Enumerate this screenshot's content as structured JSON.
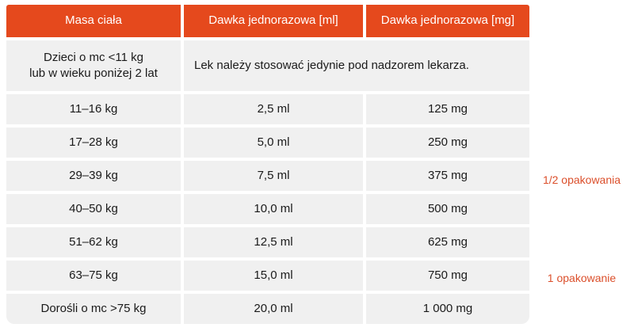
{
  "chart_data": {
    "type": "table",
    "columns": [
      "Masa ciała",
      "Dawka jednorazowa [ml]",
      "Dawka jednorazowa [mg]"
    ],
    "special_row": {
      "mass": "Dzieci o mc <11 kg lub w wieku poniżej 2 lat",
      "note": "Lek należy stosować jedynie pod nadzorem lekarza."
    },
    "rows": [
      [
        "11–16 kg",
        "2,5 ml",
        "125 mg"
      ],
      [
        "17–28 kg",
        "5,0 ml",
        "250 mg"
      ],
      [
        "29–39 kg",
        "7,5 ml",
        "375 mg"
      ],
      [
        "40–50 kg",
        "10,0 ml",
        "500 mg"
      ],
      [
        "51–62 kg",
        "12,5 ml",
        "625 mg"
      ],
      [
        "63–75 kg",
        "15,0 ml",
        "750 mg"
      ],
      [
        "Dorośli o mc >75 kg",
        "20,0 ml",
        "1 000 mg"
      ]
    ],
    "annotations": [
      {
        "label": "1/2 opakowania",
        "aligned_row": "29–39 kg"
      },
      {
        "label": "1 opakowanie",
        "aligned_row": "63–75 kg"
      }
    ]
  },
  "table": {
    "headers": [
      "Masa ciała",
      "Dawka jednorazowa [ml]",
      "Dawka jednorazowa [mg]"
    ],
    "special_row": {
      "label_line1": "Dzieci o mc <11 kg",
      "label_line2": "lub w wieku poniżej 2 lat",
      "note": "Lek należy stosować jedynie pod nadzorem lekarza."
    },
    "rows": [
      {
        "mass": "11–16 kg",
        "ml": "2,5 ml",
        "mg": "125 mg"
      },
      {
        "mass": "17–28 kg",
        "ml": "5,0 ml",
        "mg": "250 mg"
      },
      {
        "mass": "29–39 kg",
        "ml": "7,5 ml",
        "mg": "375 mg"
      },
      {
        "mass": "40–50 kg",
        "ml": "10,0 ml",
        "mg": "500 mg"
      },
      {
        "mass": "51–62 kg",
        "ml": "12,5 ml",
        "mg": "625 mg"
      },
      {
        "mass": "63–75 kg",
        "ml": "15,0 ml",
        "mg": "750 mg"
      },
      {
        "mass": "Dorośli o mc >75 kg",
        "ml": "20,0 ml",
        "mg": "1 000 mg"
      }
    ]
  },
  "annotations": [
    {
      "label": "1/2 opakowania"
    },
    {
      "label": "1 opakowanie"
    }
  ],
  "colors": {
    "header_bg": "#E5491D",
    "row_bg": "#F0F0F0",
    "header_text": "#FFFFFF",
    "body_text": "#1A1A1A",
    "annotation_color": "#DB4F2B",
    "page_bg": "#FFFFFF"
  }
}
